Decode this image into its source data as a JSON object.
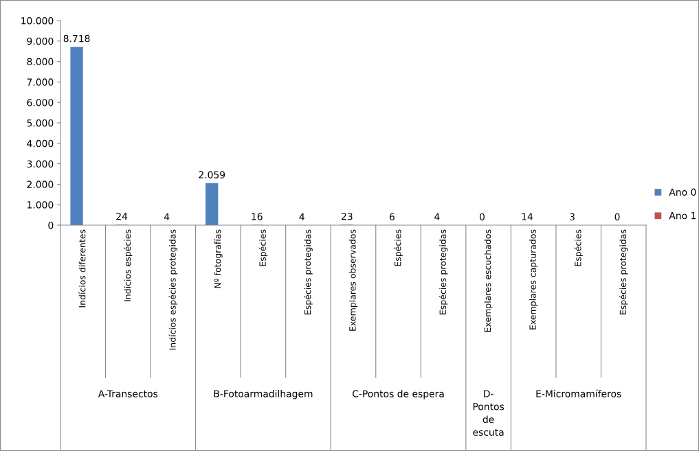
{
  "chart_data": {
    "type": "bar",
    "categories": [
      "Indícios diferentes",
      "Indícios espécies",
      "Indícios espécies protegidas",
      "Nº fotografías",
      "Espécies",
      "Espécies protegidas",
      "Exemplares observados",
      "Espécies",
      "Espécies protegidas",
      "Exemplares escuchados",
      "Exemplares capturados",
      "Espécies",
      "Espécies protegidas"
    ],
    "series": [
      {
        "name": "Ano 0",
        "color": "#4f81bd",
        "values": [
          8718,
          24,
          4,
          2059,
          16,
          4,
          23,
          6,
          4,
          0,
          14,
          3,
          0
        ],
        "value_labels": [
          "8.718",
          "24",
          "4",
          "2.059",
          "16",
          "4",
          "23",
          "6",
          "4",
          "0",
          "14",
          "3",
          "0"
        ]
      },
      {
        "name": "Ano 1",
        "color": "#c0504d",
        "values": [
          null,
          null,
          null,
          null,
          null,
          null,
          null,
          null,
          null,
          null,
          null,
          null,
          null
        ]
      }
    ],
    "ylim": [
      0,
      10000
    ],
    "yticks": [
      {
        "value": 0,
        "label": "0"
      },
      {
        "value": 1000,
        "label": "1.000"
      },
      {
        "value": 2000,
        "label": "2.000"
      },
      {
        "value": 3000,
        "label": "3.000"
      },
      {
        "value": 4000,
        "label": "4.000"
      },
      {
        "value": 5000,
        "label": "5.000"
      },
      {
        "value": 6000,
        "label": "6.000"
      },
      {
        "value": 7000,
        "label": "7.000"
      },
      {
        "value": 8000,
        "label": "8.000"
      },
      {
        "value": 9000,
        "label": "9.000"
      },
      {
        "value": 10000,
        "label": "10.000"
      }
    ],
    "annotations": [
      "A-Transectos",
      "B-Fotoarmadilhagem",
      "C-Pontos de espera",
      "D-Pontos de escuta",
      "E-Micromamíferos"
    ],
    "grid": false,
    "legend": "right"
  }
}
